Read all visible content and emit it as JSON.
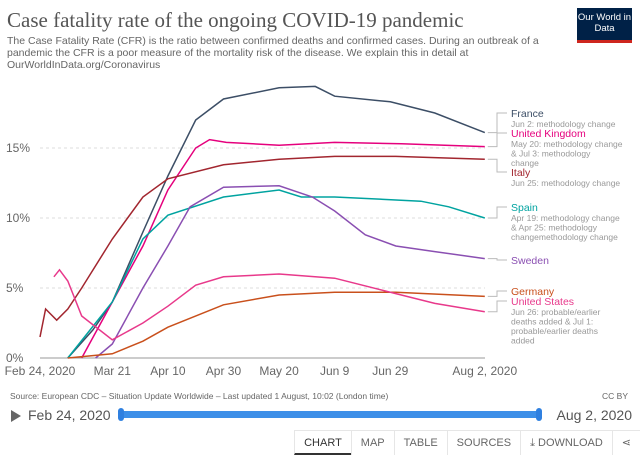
{
  "header": {
    "title": "Case fatality rate of the ongoing COVID-19 pandemic",
    "subtitle": "The Case Fatality Rate (CFR) is the ratio between confirmed deaths and confirmed cases. During an outbreak of a pandemic the CFR is a poor measure of the mortality risk of the disease. We explain this in detail at OurWorldInData.org/Coronavirus",
    "logo": "Our World in Data"
  },
  "chart_data": {
    "type": "line",
    "title": "Case fatality rate of the ongoing COVID-19 pandemic",
    "xlabel": "",
    "ylabel": "",
    "ylim": [
      0,
      20
    ],
    "xlim": [
      "2020-02-24",
      "2020-08-02"
    ],
    "yticks": [
      {
        "v": 0,
        "label": "0%"
      },
      {
        "v": 5,
        "label": "5%"
      },
      {
        "v": 10,
        "label": "10%"
      },
      {
        "v": 15,
        "label": "15%"
      }
    ],
    "xticks": [
      {
        "d": "2020-02-24",
        "label": "Feb 24, 2020"
      },
      {
        "d": "2020-03-21",
        "label": "Mar 21"
      },
      {
        "d": "2020-04-10",
        "label": "Apr 10"
      },
      {
        "d": "2020-04-30",
        "label": "Apr 30"
      },
      {
        "d": "2020-05-20",
        "label": "May 20"
      },
      {
        "d": "2020-06-09",
        "label": "Jun 9"
      },
      {
        "d": "2020-06-29",
        "label": "Jun 29"
      },
      {
        "d": "2020-08-02",
        "label": "Aug 2, 2020"
      }
    ],
    "series": [
      {
        "name": "France",
        "color": "#3c4e66",
        "note": "Jun 2: methodology change",
        "points": [
          [
            "2020-03-05",
            0
          ],
          [
            "2020-03-14",
            2
          ],
          [
            "2020-03-21",
            4
          ],
          [
            "2020-04-01",
            9
          ],
          [
            "2020-04-10",
            13
          ],
          [
            "2020-04-20",
            17
          ],
          [
            "2020-04-30",
            18.5
          ],
          [
            "2020-05-20",
            19.3
          ],
          [
            "2020-06-02",
            19.4
          ],
          [
            "2020-06-09",
            18.7
          ],
          [
            "2020-06-29",
            18.3
          ],
          [
            "2020-07-15",
            17.5
          ],
          [
            "2020-08-02",
            16.1
          ]
        ]
      },
      {
        "name": "United Kingdom",
        "color": "#e5007d",
        "note": "May 20: methodology change & Jul 3: methodology change",
        "points": [
          [
            "2020-03-10",
            0
          ],
          [
            "2020-03-21",
            4
          ],
          [
            "2020-04-01",
            8
          ],
          [
            "2020-04-10",
            12
          ],
          [
            "2020-04-20",
            15
          ],
          [
            "2020-04-25",
            15.6
          ],
          [
            "2020-05-01",
            15.4
          ],
          [
            "2020-05-20",
            15.2
          ],
          [
            "2020-06-09",
            15.4
          ],
          [
            "2020-07-03",
            15.3
          ],
          [
            "2020-08-02",
            15.1
          ]
        ]
      },
      {
        "name": "Italy",
        "color": "#a2262f",
        "note": "Jun 25: methodology change",
        "points": [
          [
            "2020-02-24",
            1.5
          ],
          [
            "2020-02-26",
            3.5
          ],
          [
            "2020-03-01",
            2.7
          ],
          [
            "2020-03-05",
            3.5
          ],
          [
            "2020-03-10",
            5
          ],
          [
            "2020-03-21",
            8.5
          ],
          [
            "2020-04-01",
            11.5
          ],
          [
            "2020-04-10",
            12.8
          ],
          [
            "2020-04-30",
            13.8
          ],
          [
            "2020-05-20",
            14.2
          ],
          [
            "2020-06-09",
            14.4
          ],
          [
            "2020-07-01",
            14.4
          ],
          [
            "2020-08-02",
            14.2
          ]
        ]
      },
      {
        "name": "Spain",
        "color": "#00a3a0",
        "note": "Apr 19: methodology change & Apr 25: methodology changemethodology change",
        "points": [
          [
            "2020-03-05",
            0
          ],
          [
            "2020-03-21",
            4
          ],
          [
            "2020-04-01",
            8.5
          ],
          [
            "2020-04-10",
            10.2
          ],
          [
            "2020-04-30",
            11.5
          ],
          [
            "2020-05-20",
            12
          ],
          [
            "2020-05-28",
            11.5
          ],
          [
            "2020-06-09",
            11.5
          ],
          [
            "2020-07-10",
            11.2
          ],
          [
            "2020-07-20",
            10.8
          ],
          [
            "2020-08-02",
            10
          ]
        ]
      },
      {
        "name": "Sweden",
        "color": "#8a4fb2",
        "note": "",
        "points": [
          [
            "2020-03-15",
            0
          ],
          [
            "2020-03-21",
            1
          ],
          [
            "2020-04-01",
            5
          ],
          [
            "2020-04-10",
            8
          ],
          [
            "2020-04-18",
            10.8
          ],
          [
            "2020-04-30",
            12.2
          ],
          [
            "2020-05-20",
            12.3
          ],
          [
            "2020-06-01",
            11.5
          ],
          [
            "2020-06-09",
            10.5
          ],
          [
            "2020-06-20",
            8.8
          ],
          [
            "2020-07-01",
            8
          ],
          [
            "2020-07-15",
            7.6
          ],
          [
            "2020-08-02",
            7.1
          ]
        ]
      },
      {
        "name": "Germany",
        "color": "#c9501c",
        "note": "",
        "points": [
          [
            "2020-03-05",
            0
          ],
          [
            "2020-03-21",
            0.3
          ],
          [
            "2020-04-01",
            1.2
          ],
          [
            "2020-04-10",
            2.2
          ],
          [
            "2020-04-30",
            3.8
          ],
          [
            "2020-05-20",
            4.5
          ],
          [
            "2020-06-09",
            4.7
          ],
          [
            "2020-07-01",
            4.7
          ],
          [
            "2020-08-02",
            4.4
          ]
        ]
      },
      {
        "name": "United States",
        "color": "#e8398b",
        "note": "Jun 26: probable/earlier deaths added & Jul 1: probable/earlier deaths added",
        "points": [
          [
            "2020-02-29",
            5.8
          ],
          [
            "2020-03-02",
            6.3
          ],
          [
            "2020-03-05",
            5.5
          ],
          [
            "2020-03-10",
            3
          ],
          [
            "2020-03-21",
            1.3
          ],
          [
            "2020-04-01",
            2.5
          ],
          [
            "2020-04-10",
            3.7
          ],
          [
            "2020-04-20",
            5.2
          ],
          [
            "2020-04-30",
            5.8
          ],
          [
            "2020-05-20",
            6
          ],
          [
            "2020-06-09",
            5.7
          ],
          [
            "2020-07-01",
            4.6
          ],
          [
            "2020-07-15",
            3.9
          ],
          [
            "2020-08-02",
            3.3
          ]
        ]
      }
    ]
  },
  "footer": {
    "source": "Source: European CDC – Situation Update Worldwide – Last updated 1 August, 10:02 (London time)",
    "license": "CC BY",
    "start_date": "Feb 24, 2020",
    "end_date": "Aug 2, 2020"
  },
  "tabs": [
    "CHART",
    "MAP",
    "TABLE",
    "SOURCES",
    "DOWNLOAD"
  ]
}
